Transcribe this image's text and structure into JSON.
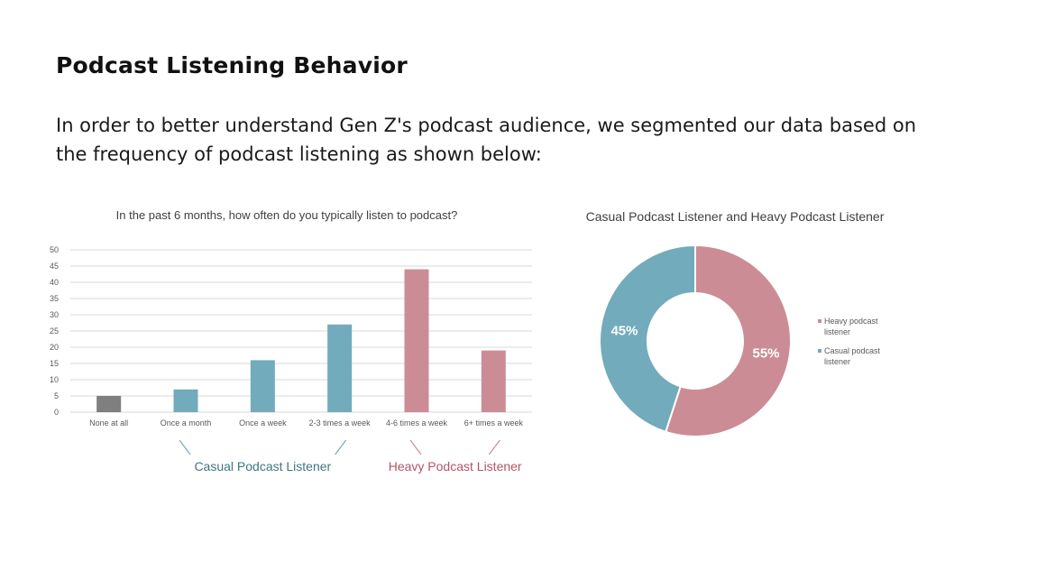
{
  "page": {
    "title": "Podcast Listening Behavior",
    "intro": "In order to better understand Gen Z's podcast audience, we segmented our data based on the frequency of podcast listening as shown below:"
  },
  "colors": {
    "none": "#7f7f7f",
    "casual": "#72abbb",
    "heavy": "#cc8c95",
    "casual_text": "#3f7685",
    "heavy_text": "#b45565",
    "grid": "#d9d9d9",
    "axis_text": "#595959"
  },
  "chart_data": [
    {
      "type": "bar",
      "title": "In the past 6 months, how often do you typically listen to podcast?",
      "categories": [
        "None at all",
        "Once a month",
        "Once a week",
        "2-3 times a week",
        "4-6 times a week",
        "6+ times a week"
      ],
      "values": [
        5,
        7,
        16,
        27,
        44,
        19
      ],
      "segments": [
        "none",
        "casual",
        "casual",
        "casual",
        "heavy",
        "heavy"
      ],
      "ylim": [
        0,
        50
      ],
      "yticks": [
        "0",
        "5",
        "10",
        "15",
        "20",
        "25",
        "30",
        "35",
        "40",
        "45",
        "50"
      ],
      "xlabel": "",
      "ylabel": "",
      "grid": true,
      "groups": [
        {
          "label": "Casual Podcast Listener",
          "segment": "casual",
          "from": 1,
          "to": 3
        },
        {
          "label": "Heavy Podcast Listener",
          "segment": "heavy",
          "from": 4,
          "to": 5
        }
      ]
    },
    {
      "type": "pie",
      "title": "Casual Podcast Listener and Heavy Podcast Listener",
      "labels": [
        "Heavy podcast listener",
        "Casual podcast listener"
      ],
      "legend_lines": [
        [
          "Heavy podcast",
          "listener"
        ],
        [
          "Casual podcast",
          "listener"
        ]
      ],
      "segments": [
        "heavy",
        "casual"
      ],
      "values": [
        55,
        45
      ],
      "value_labels": [
        "55%",
        "45%"
      ],
      "donut": true,
      "legend": "right"
    }
  ]
}
